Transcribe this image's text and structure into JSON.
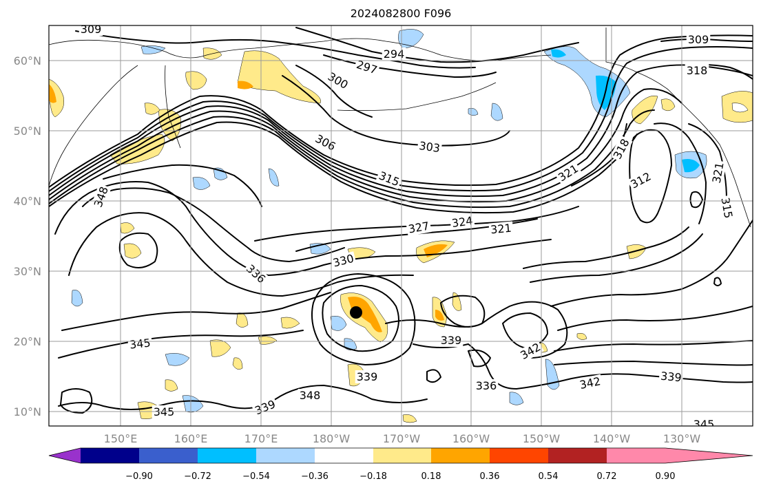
{
  "title": "2024082800 F096",
  "longitude_ticks": [
    "150°E",
    "160°E",
    "170°E",
    "180°W",
    "170°W",
    "160°W",
    "150°W",
    "140°W",
    "130°W"
  ],
  "latitude_ticks": [
    "10°N",
    "20°N",
    "30°N",
    "40°N",
    "50°N",
    "60°N"
  ],
  "colorbar": {
    "tick_labels": [
      "−0.90",
      "−0.72",
      "−0.54",
      "−0.36",
      "−0.18",
      "0.18",
      "0.36",
      "0.54",
      "0.72",
      "0.90"
    ],
    "colors": [
      "#9932cc",
      "#00008b",
      "#3a5fcd",
      "#00bfff",
      "#add8ff",
      "#ffffff",
      "#ffea8a",
      "#ffa500",
      "#ff4500",
      "#b22222",
      "#ff88aa"
    ]
  },
  "contour_labels": [
    {
      "id": "309-nw",
      "text": "309"
    },
    {
      "id": "294",
      "text": "294"
    },
    {
      "id": "297",
      "text": "297"
    },
    {
      "id": "300",
      "text": "300"
    },
    {
      "id": "306",
      "text": "306"
    },
    {
      "id": "303",
      "text": "303"
    },
    {
      "id": "315-mid",
      "text": "315"
    },
    {
      "id": "321-n",
      "text": "321"
    },
    {
      "id": "318-ne",
      "text": "318"
    },
    {
      "id": "318-e",
      "text": "318"
    },
    {
      "id": "309-ne",
      "text": "309"
    },
    {
      "id": "312",
      "text": "312"
    },
    {
      "id": "321-e",
      "text": "321"
    },
    {
      "id": "315-e",
      "text": "315"
    },
    {
      "id": "348-w",
      "text": "348"
    },
    {
      "id": "327",
      "text": "327"
    },
    {
      "id": "324",
      "text": "324"
    },
    {
      "id": "321-c",
      "text": "321"
    },
    {
      "id": "330",
      "text": "330"
    },
    {
      "id": "336-w",
      "text": "336"
    },
    {
      "id": "345-w",
      "text": "345"
    },
    {
      "id": "339-c",
      "text": "339"
    },
    {
      "id": "342-c",
      "text": "342"
    },
    {
      "id": "339-s",
      "text": "339"
    },
    {
      "id": "336-s",
      "text": "336"
    },
    {
      "id": "339-sw",
      "text": "339"
    },
    {
      "id": "348-s",
      "text": "348"
    },
    {
      "id": "345-sw",
      "text": "345"
    },
    {
      "id": "342-e",
      "text": "342"
    },
    {
      "id": "339-e",
      "text": "339"
    },
    {
      "id": "345-se",
      "text": "345"
    }
  ],
  "marker": {
    "color": "#000000"
  }
}
